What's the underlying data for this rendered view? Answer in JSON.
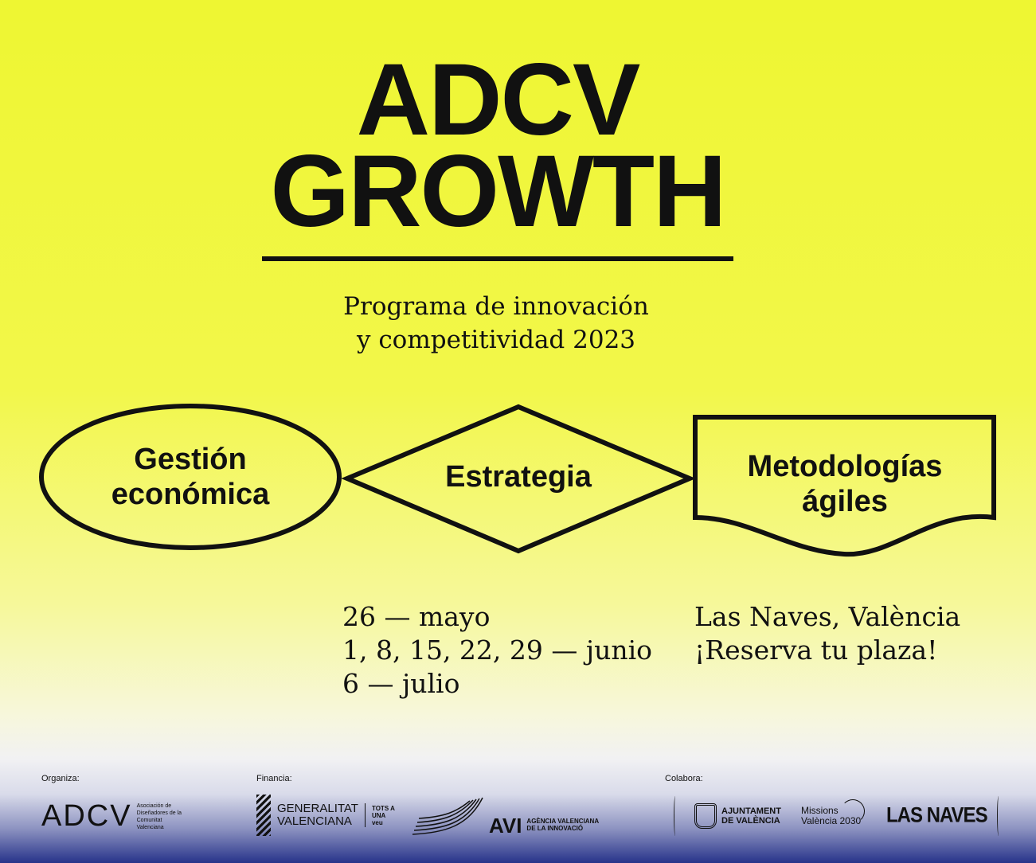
{
  "title": {
    "line1": "ADCV",
    "line2": "GROWTH"
  },
  "subtitle": {
    "line1": "Programa de  innovación",
    "line2": "y competitividad 2023"
  },
  "modules": [
    {
      "line1": "Gestión",
      "line2": "económica"
    },
    {
      "line1": "Estrategia"
    },
    {
      "line1": "Metodologías",
      "line2": "ágiles"
    }
  ],
  "dates": [
    "26 — mayo",
    "1, 8, 15, 22, 29 — junio",
    "6 — julio"
  ],
  "venue": {
    "place": "Las Naves, València",
    "cta": "¡Reserva tu plaza!"
  },
  "footer": {
    "organiza": "Organiza:",
    "financia": "Financia:",
    "colabora": "Colabora:",
    "adcv": {
      "mark": "ADCV",
      "text": "Asociación de Diseñadores de la Comunitat Valenciana"
    },
    "gva": {
      "line1": "GENERALITAT",
      "line2": "VALENCIANA",
      "tag": "TOTS A UNA veu"
    },
    "avi": {
      "mark": "AVI",
      "line1": "AGÈNCIA VALENCIANA",
      "line2": "DE LA INNOVACIÓ"
    },
    "ajuntament": {
      "line1": "AJUNTAMENT",
      "line2": "DE VALÈNCIA"
    },
    "missions": {
      "line1": "Missions",
      "line2": "València 2030"
    },
    "lasnaves": "LAS NAVES"
  },
  "colors": {
    "yellow": "#eef632",
    "blue": "#27338a",
    "ink": "#111111"
  }
}
